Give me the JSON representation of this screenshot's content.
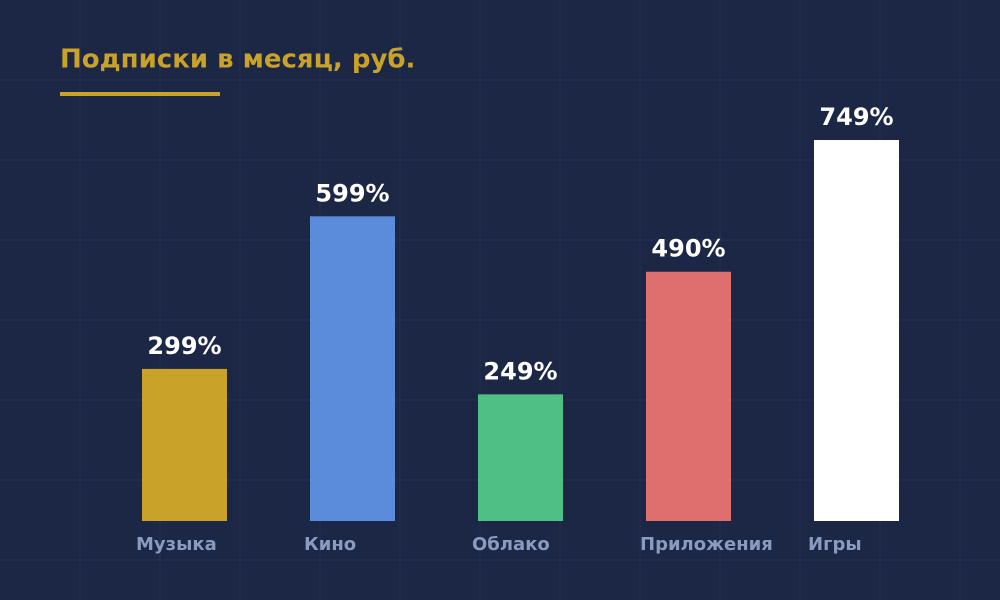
{
  "chart_data": {
    "type": "bar",
    "title": "Подписки в месяц, руб.",
    "categories": [
      "Музыка",
      "Кино",
      "Облако",
      "Приложения",
      "Игры"
    ],
    "values": [
      299,
      599,
      249,
      490,
      749
    ],
    "value_labels": [
      "299%",
      "599%",
      "249%",
      "490%",
      "749%"
    ],
    "colors": [
      "#c9a22a",
      "#5b8bdb",
      "#4fbf85",
      "#df6e6e",
      "#ffffff"
    ]
  }
}
